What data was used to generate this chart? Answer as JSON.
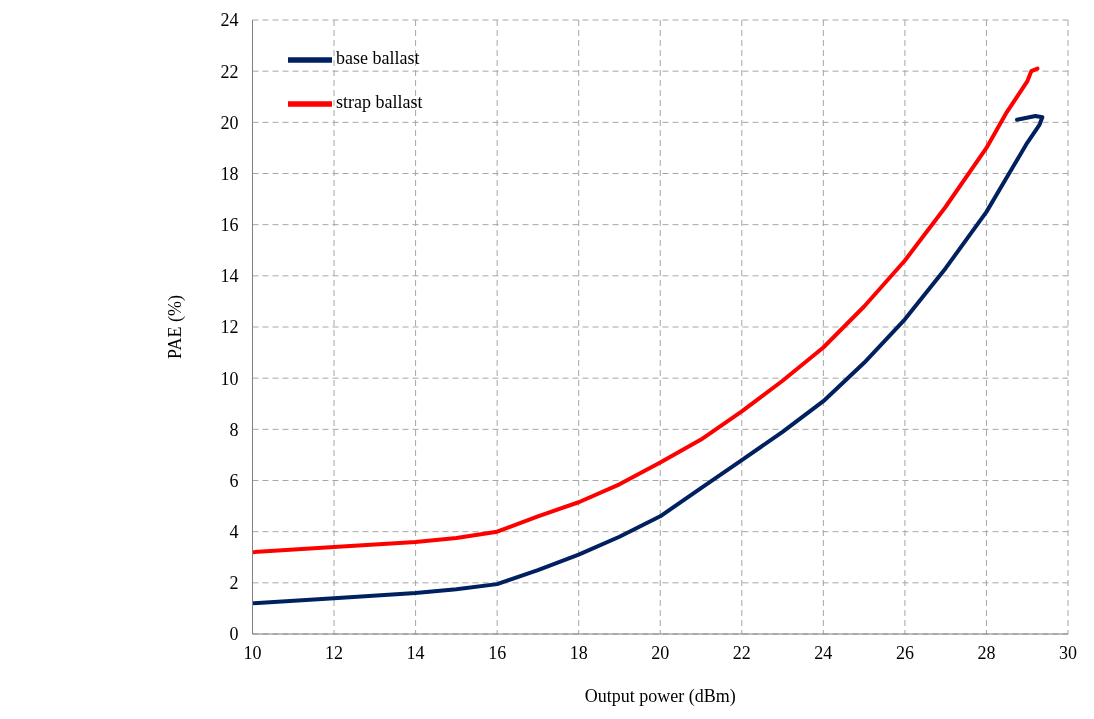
{
  "chart_data": {
    "type": "line",
    "xlabel": "Output power (dBm)",
    "ylabel": "PAE (%)",
    "xlim": [
      10,
      30
    ],
    "xticks": [
      10,
      12,
      14,
      16,
      18,
      20,
      22,
      24,
      26,
      28,
      30
    ],
    "ylim": [
      0,
      24
    ],
    "yticks": [
      0,
      2,
      4,
      6,
      8,
      10,
      12,
      14,
      16,
      18,
      20,
      22,
      24
    ],
    "grid": true,
    "legend": "top left",
    "marker": "none",
    "line_style": "solid",
    "series": [
      {
        "name": "base ballast",
        "color": "#002060",
        "x": [
          10,
          12,
          14,
          15,
          16,
          17,
          18,
          19,
          20,
          21,
          22,
          23,
          24,
          25,
          26,
          27,
          28,
          29,
          29.3,
          29.37,
          29.2,
          28.75
        ],
        "values": [
          1.2,
          1.4,
          1.6,
          1.75,
          1.95,
          2.5,
          3.1,
          3.8,
          4.6,
          5.7,
          6.8,
          7.9,
          9.1,
          10.6,
          12.3,
          14.3,
          16.5,
          19.2,
          19.9,
          20.2,
          20.25,
          20.1
        ]
      },
      {
        "name": "strap ballast",
        "color": "#ff0000",
        "x": [
          10,
          12,
          14,
          15,
          16,
          17,
          18,
          19,
          20,
          21,
          22,
          23,
          24,
          25,
          26,
          27,
          28,
          28.5,
          29,
          29.1,
          29.25
        ],
        "values": [
          3.2,
          3.4,
          3.6,
          3.75,
          4.0,
          4.6,
          5.15,
          5.85,
          6.7,
          7.6,
          8.7,
          9.9,
          11.2,
          12.8,
          14.6,
          16.7,
          19.0,
          20.4,
          21.6,
          22.0,
          22.1
        ]
      }
    ]
  }
}
